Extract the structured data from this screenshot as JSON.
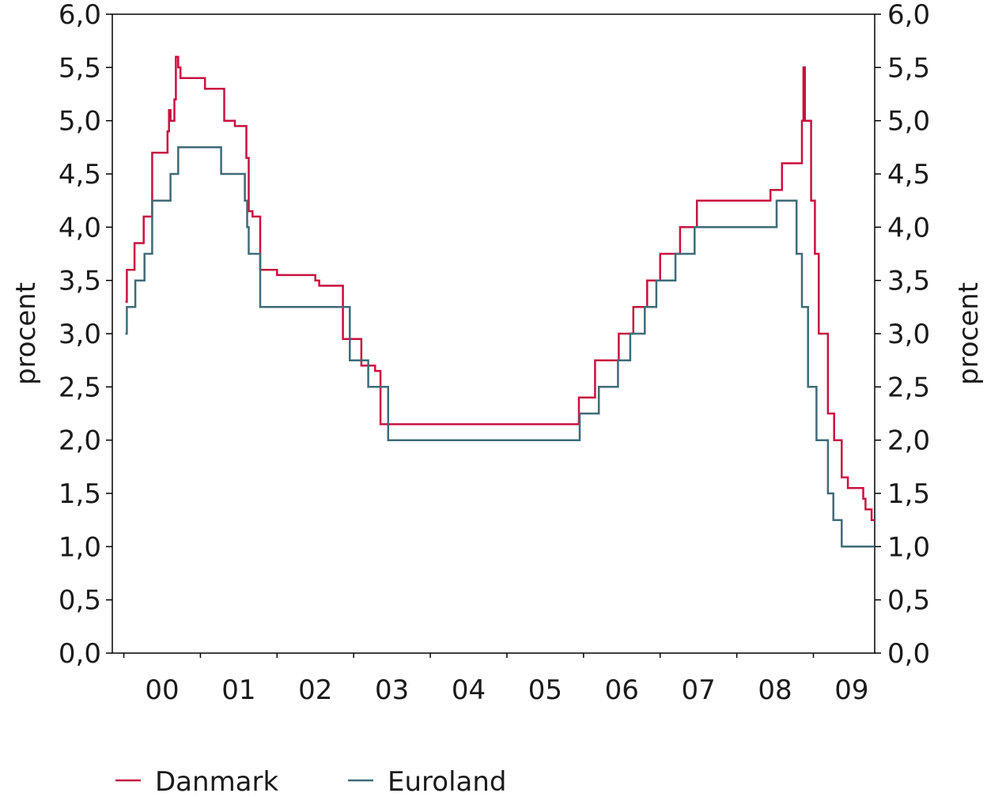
{
  "chart_data": {
    "type": "line",
    "step": true,
    "xlabel": "",
    "ylabel_left": "procent",
    "ylabel_right": "procent",
    "ylim": [
      0,
      6
    ],
    "yticks": [
      "0,0",
      "0,5",
      "1,0",
      "1,5",
      "2,0",
      "2,5",
      "3,0",
      "3,5",
      "4,0",
      "4,5",
      "5,0",
      "5,5",
      "6,0"
    ],
    "xlim": [
      1999.85,
      2009.8
    ],
    "xticks": [
      {
        "label": "00",
        "x": 2000.5
      },
      {
        "label": "01",
        "x": 2001.5
      },
      {
        "label": "02",
        "x": 2002.5
      },
      {
        "label": "03",
        "x": 2003.5
      },
      {
        "label": "04",
        "x": 2004.5
      },
      {
        "label": "05",
        "x": 2005.5
      },
      {
        "label": "06",
        "x": 2006.5
      },
      {
        "label": "07",
        "x": 2007.5
      },
      {
        "label": "08",
        "x": 2008.5
      },
      {
        "label": "09",
        "x": 2009.5
      }
    ],
    "grid": false,
    "legend": "bottom-left",
    "series": [
      {
        "name": "Danmark",
        "color": "#c8103e",
        "points": [
          [
            2000.02,
            3.3
          ],
          [
            2000.04,
            3.6
          ],
          [
            2000.14,
            3.85
          ],
          [
            2000.26,
            4.1
          ],
          [
            2000.37,
            4.7
          ],
          [
            2000.57,
            4.9
          ],
          [
            2000.59,
            5.1
          ],
          [
            2000.61,
            5.0
          ],
          [
            2000.66,
            5.2
          ],
          [
            2000.68,
            5.6
          ],
          [
            2000.71,
            5.5
          ],
          [
            2000.74,
            5.4
          ],
          [
            2001.06,
            5.3
          ],
          [
            2001.31,
            5.0
          ],
          [
            2001.45,
            4.95
          ],
          [
            2001.6,
            4.65
          ],
          [
            2001.63,
            4.15
          ],
          [
            2001.68,
            4.1
          ],
          [
            2001.78,
            3.6
          ],
          [
            2002.0,
            3.55
          ],
          [
            2002.5,
            3.5
          ],
          [
            2002.55,
            3.45
          ],
          [
            2002.86,
            2.95
          ],
          [
            2003.1,
            2.7
          ],
          [
            2003.28,
            2.65
          ],
          [
            2003.35,
            2.15
          ],
          [
            2005.94,
            2.4
          ],
          [
            2006.15,
            2.75
          ],
          [
            2006.46,
            3.0
          ],
          [
            2006.65,
            3.25
          ],
          [
            2006.83,
            3.5
          ],
          [
            2007.0,
            3.75
          ],
          [
            2007.26,
            4.0
          ],
          [
            2007.48,
            4.25
          ],
          [
            2008.44,
            4.35
          ],
          [
            2008.59,
            4.6
          ],
          [
            2008.85,
            5.0
          ],
          [
            2008.87,
            5.5
          ],
          [
            2008.89,
            5.0
          ],
          [
            2008.97,
            4.25
          ],
          [
            2009.02,
            3.75
          ],
          [
            2009.07,
            3.0
          ],
          [
            2009.19,
            2.25
          ],
          [
            2009.27,
            2.0
          ],
          [
            2009.37,
            1.65
          ],
          [
            2009.45,
            1.55
          ],
          [
            2009.65,
            1.45
          ],
          [
            2009.68,
            1.35
          ],
          [
            2009.76,
            1.25
          ],
          [
            2009.8,
            1.25
          ]
        ]
      },
      {
        "name": "Euroland",
        "color": "#3e6b78",
        "points": [
          [
            2000.02,
            3.0
          ],
          [
            2000.04,
            3.25
          ],
          [
            2000.15,
            3.5
          ],
          [
            2000.27,
            3.75
          ],
          [
            2000.37,
            4.25
          ],
          [
            2000.61,
            4.5
          ],
          [
            2000.71,
            4.75
          ],
          [
            2001.27,
            4.5
          ],
          [
            2001.58,
            4.25
          ],
          [
            2001.61,
            4.0
          ],
          [
            2001.63,
            3.75
          ],
          [
            2001.78,
            3.25
          ],
          [
            2002.95,
            2.75
          ],
          [
            2003.19,
            2.5
          ],
          [
            2003.45,
            2.0
          ],
          [
            2005.95,
            2.25
          ],
          [
            2006.2,
            2.5
          ],
          [
            2006.45,
            2.75
          ],
          [
            2006.61,
            3.0
          ],
          [
            2006.8,
            3.25
          ],
          [
            2006.95,
            3.5
          ],
          [
            2007.2,
            3.75
          ],
          [
            2007.45,
            4.0
          ],
          [
            2008.52,
            4.25
          ],
          [
            2008.78,
            3.75
          ],
          [
            2008.85,
            3.25
          ],
          [
            2008.93,
            2.5
          ],
          [
            2009.04,
            2.0
          ],
          [
            2009.19,
            1.5
          ],
          [
            2009.26,
            1.25
          ],
          [
            2009.37,
            1.0
          ],
          [
            2009.8,
            1.0
          ]
        ]
      }
    ]
  }
}
